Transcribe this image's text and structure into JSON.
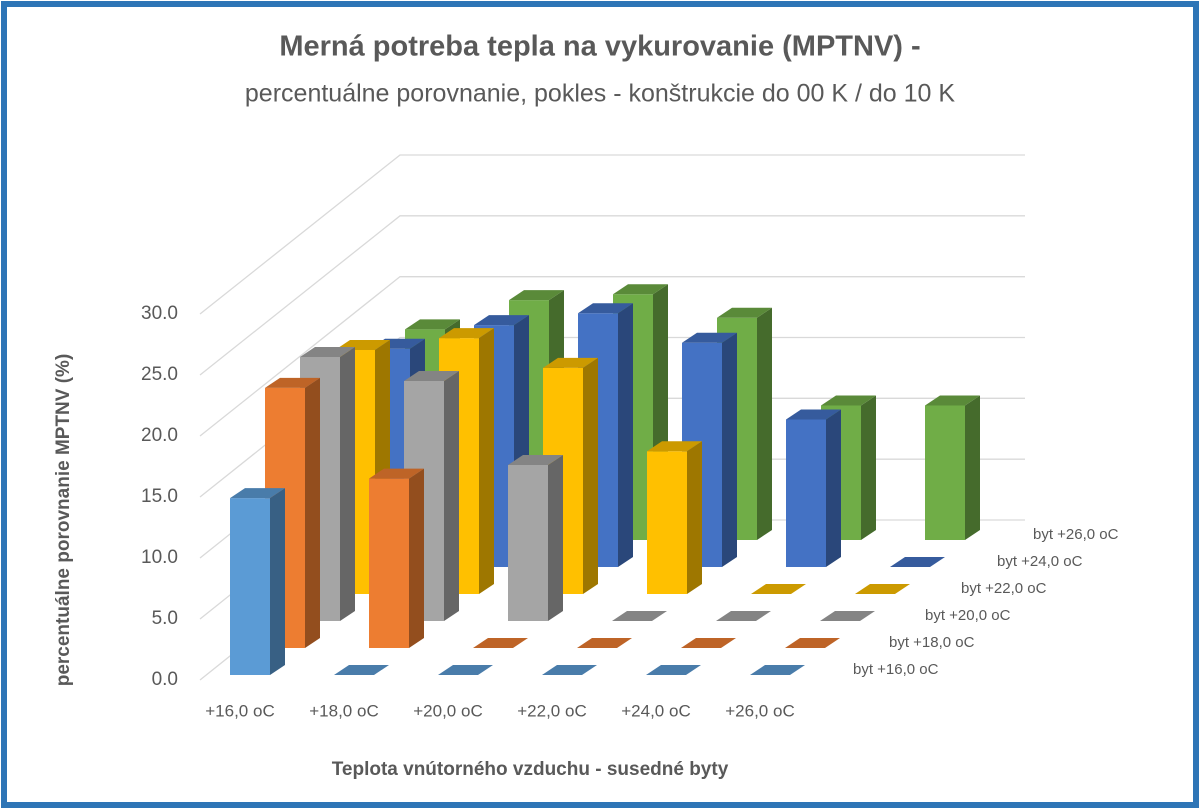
{
  "chart_data": {
    "type": "bar3d",
    "title": "Merná potreba tepla na vykurovanie (MPTNV) -",
    "subtitle": "percentuálne porovnanie, pokles - konštrukcie do 00 K / do 10 K",
    "x_label": "Teplota vnútorného vzduchu - susedné byty",
    "y_label": "percentuálne porovnanie MPTNV (%)",
    "categories": [
      "+16,0 oC",
      "+18,0 oC",
      "+20,0 oC",
      "+22,0 oC",
      "+24,0 oC",
      "+26,0 oC"
    ],
    "series": [
      {
        "name": "byt +16,0 oC",
        "color": "#5b9bd5",
        "values": [
          14.5,
          0,
          0,
          0,
          0,
          0
        ]
      },
      {
        "name": "byt +18,0 oC",
        "color": "#ed7d31",
        "values": [
          21.5,
          14,
          0,
          0,
          0,
          0
        ]
      },
      {
        "name": "byt +20,0 oC",
        "color": "#a5a5a5",
        "values": [
          22,
          20,
          13,
          0,
          0,
          0
        ]
      },
      {
        "name": "byt +22,0 oC",
        "color": "#ffc000",
        "values": [
          20.5,
          21.5,
          19,
          12,
          0,
          0
        ]
      },
      {
        "name": "byt +24,0 oC",
        "color": "#4472c4",
        "values": [
          18.5,
          20.5,
          21.5,
          19,
          12.5,
          0
        ]
      },
      {
        "name": "byt +26,0 oC",
        "color": "#70ad47",
        "values": [
          18,
          20.5,
          21,
          19,
          11.5,
          11.5
        ]
      }
    ],
    "ylim": [
      0,
      30
    ],
    "yticks": [
      {
        "value": 0,
        "label": "0.0"
      },
      {
        "value": 5,
        "label": "5.0"
      },
      {
        "value": 10,
        "label": "10.0"
      },
      {
        "value": 15,
        "label": "15.0"
      },
      {
        "value": 20,
        "label": "20.0"
      },
      {
        "value": 25,
        "label": "25.0"
      },
      {
        "value": 30,
        "label": "30.0"
      }
    ],
    "grid": true
  }
}
